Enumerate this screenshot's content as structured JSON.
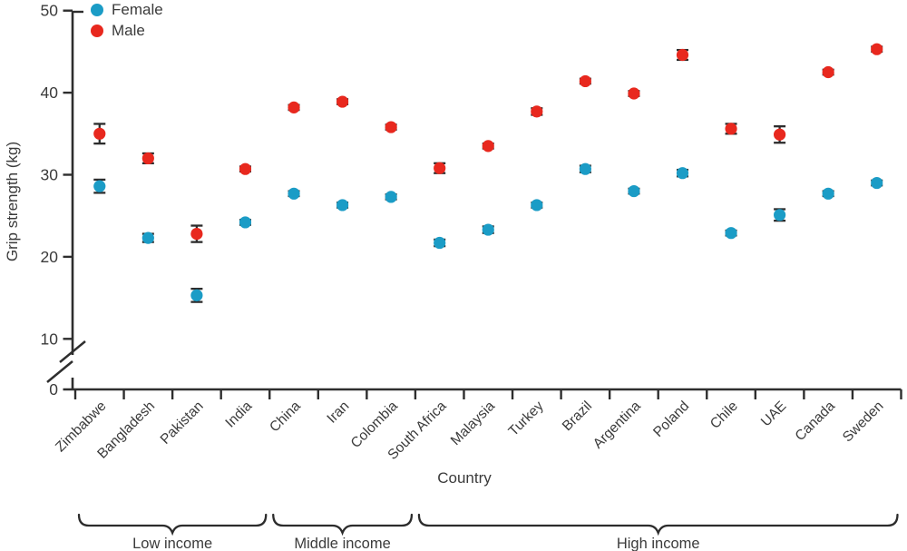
{
  "chart_data": {
    "type": "scatter",
    "title": "",
    "xlabel": "Country",
    "ylabel": "Grip strength (kg)",
    "ylim": [
      0,
      50
    ],
    "yticks": [
      0,
      10,
      20,
      30,
      40,
      50
    ],
    "y_axis_break_between": [
      0,
      10
    ],
    "grid": false,
    "legend_position": "top-left",
    "error_bar_color": "#2c2c2c",
    "axis_color": "#2e2e2e",
    "categories": [
      "Zimbabwe",
      "Bangladesh",
      "Pakistan",
      "India",
      "China",
      "Iran",
      "Colombia",
      "South Africa",
      "Malaysia",
      "Turkey",
      "Brazil",
      "Argentina",
      "Poland",
      "Chile",
      "UAE",
      "Canada",
      "Sweden"
    ],
    "groups": [
      {
        "label": "Low income",
        "span": [
          0,
          3
        ]
      },
      {
        "label": "Middle income",
        "span": [
          4,
          6
        ]
      },
      {
        "label": "High income",
        "span": [
          7,
          16
        ]
      }
    ],
    "series": [
      {
        "name": "Female",
        "color": "#1b9cc6",
        "marker": "circle",
        "values": [
          28.6,
          22.3,
          15.3,
          24.2,
          27.7,
          26.3,
          27.3,
          21.7,
          23.3,
          26.3,
          30.7,
          28.0,
          30.2,
          22.9,
          25.1,
          27.7,
          29.0
        ],
        "errors": [
          0.8,
          0.5,
          0.8,
          0.3,
          0.3,
          0.3,
          0.3,
          0.4,
          0.4,
          0.3,
          0.4,
          0.3,
          0.4,
          0.3,
          0.7,
          0.3,
          0.3
        ]
      },
      {
        "name": "Male",
        "color": "#e8281e",
        "marker": "circle",
        "values": [
          35.0,
          32.0,
          22.8,
          30.7,
          38.2,
          38.9,
          35.8,
          30.8,
          33.5,
          37.7,
          41.4,
          39.9,
          44.6,
          35.6,
          34.9,
          42.5,
          45.3
        ],
        "errors": [
          1.2,
          0.6,
          1.0,
          0.3,
          0.3,
          0.3,
          0.3,
          0.6,
          0.3,
          0.4,
          0.3,
          0.3,
          0.6,
          0.6,
          1.0,
          0.3,
          0.3
        ]
      }
    ]
  }
}
